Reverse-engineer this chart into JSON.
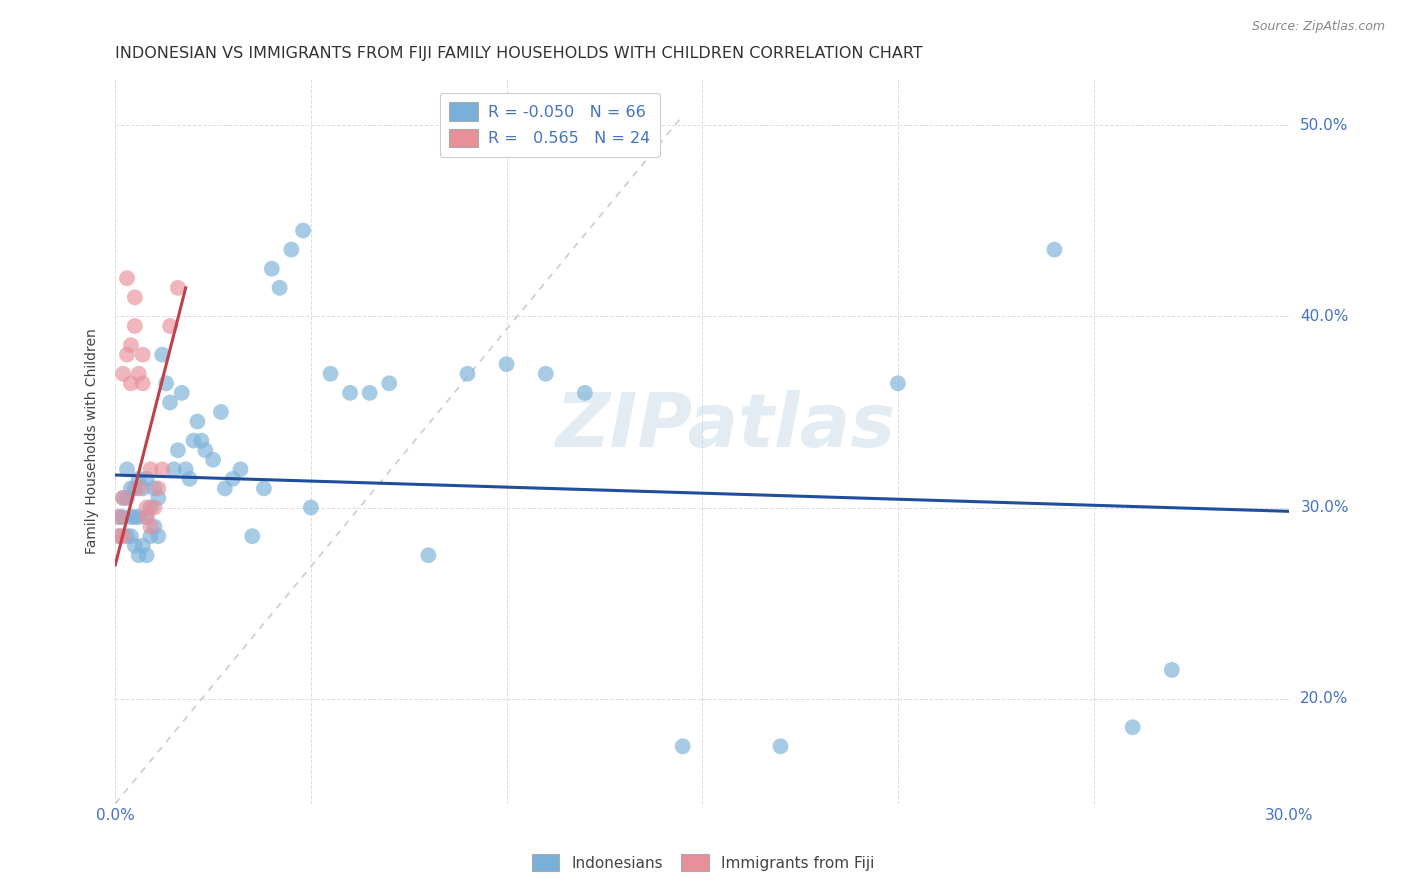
{
  "title": "INDONESIAN VS IMMIGRANTS FROM FIJI FAMILY HOUSEHOLDS WITH CHILDREN CORRELATION CHART",
  "source": "Source: ZipAtlas.com",
  "ylabel": "Family Households with Children",
  "xlim": [
    0.0,
    0.3
  ],
  "ylim": [
    0.145,
    0.525
  ],
  "xtick_vals": [
    0.0,
    0.05,
    0.1,
    0.15,
    0.2,
    0.25,
    0.3
  ],
  "ytick_vals": [
    0.2,
    0.3,
    0.4,
    0.5
  ],
  "indonesian_R": -0.05,
  "indonesian_N": 66,
  "fiji_R": 0.565,
  "fiji_N": 24,
  "watermark": "ZIPatlas",
  "indonesian_x": [
    0.001,
    0.001,
    0.002,
    0.002,
    0.003,
    0.003,
    0.003,
    0.004,
    0.004,
    0.004,
    0.005,
    0.005,
    0.005,
    0.006,
    0.006,
    0.006,
    0.007,
    0.007,
    0.008,
    0.008,
    0.008,
    0.009,
    0.009,
    0.01,
    0.01,
    0.011,
    0.011,
    0.012,
    0.013,
    0.014,
    0.015,
    0.016,
    0.017,
    0.018,
    0.019,
    0.02,
    0.021,
    0.022,
    0.023,
    0.025,
    0.027,
    0.028,
    0.03,
    0.032,
    0.035,
    0.038,
    0.04,
    0.042,
    0.045,
    0.048,
    0.05,
    0.055,
    0.06,
    0.065,
    0.07,
    0.08,
    0.09,
    0.1,
    0.11,
    0.12,
    0.145,
    0.17,
    0.2,
    0.24,
    0.26,
    0.27
  ],
  "indonesian_y": [
    0.285,
    0.295,
    0.295,
    0.305,
    0.285,
    0.305,
    0.32,
    0.285,
    0.295,
    0.31,
    0.28,
    0.295,
    0.31,
    0.275,
    0.295,
    0.315,
    0.28,
    0.31,
    0.275,
    0.295,
    0.315,
    0.285,
    0.3,
    0.29,
    0.31,
    0.285,
    0.305,
    0.38,
    0.365,
    0.355,
    0.32,
    0.33,
    0.36,
    0.32,
    0.315,
    0.335,
    0.345,
    0.335,
    0.33,
    0.325,
    0.35,
    0.31,
    0.315,
    0.32,
    0.285,
    0.31,
    0.425,
    0.415,
    0.435,
    0.445,
    0.3,
    0.37,
    0.36,
    0.36,
    0.365,
    0.275,
    0.37,
    0.375,
    0.37,
    0.36,
    0.175,
    0.175,
    0.365,
    0.435,
    0.185,
    0.215
  ],
  "fiji_x": [
    0.001,
    0.001,
    0.002,
    0.002,
    0.002,
    0.003,
    0.003,
    0.004,
    0.004,
    0.005,
    0.005,
    0.006,
    0.006,
    0.007,
    0.007,
    0.008,
    0.008,
    0.009,
    0.009,
    0.01,
    0.011,
    0.012,
    0.014,
    0.016
  ],
  "fiji_y": [
    0.285,
    0.295,
    0.285,
    0.305,
    0.37,
    0.38,
    0.42,
    0.365,
    0.385,
    0.41,
    0.395,
    0.31,
    0.37,
    0.365,
    0.38,
    0.3,
    0.295,
    0.32,
    0.29,
    0.3,
    0.31,
    0.32,
    0.395,
    0.415
  ],
  "blue_line_x": [
    0.0,
    0.3
  ],
  "blue_line_y": [
    0.317,
    0.298
  ],
  "pink_line_x": [
    0.0,
    0.018
  ],
  "pink_line_y": [
    0.27,
    0.415
  ],
  "diag_line_x": [
    0.0,
    0.145
  ],
  "diag_line_y": [
    0.145,
    0.505
  ],
  "blue_line_color": "#1f4e9c",
  "pink_line_color": "#c0404a",
  "diag_line_color": "#cccccc",
  "dot_blue": "#7ab0d8",
  "dot_pink": "#e8909a",
  "bg_color": "#ffffff",
  "grid_color": "#dddddd",
  "title_color": "#333333",
  "axis_label_color": "#444444",
  "tick_label_color": "#4472c4",
  "source_color": "#888888"
}
